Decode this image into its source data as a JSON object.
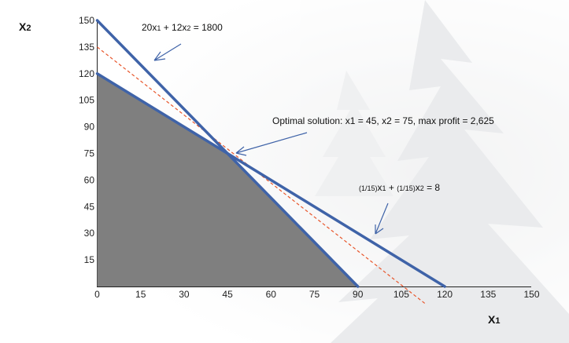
{
  "chart_data": {
    "type": "line",
    "xlabel_main": "X",
    "xlabel_sub": "1",
    "ylabel_main": "X",
    "ylabel_sub": "2",
    "xlim": [
      0,
      150
    ],
    "ylim": [
      0,
      150
    ],
    "x_ticks": [
      "0",
      "15",
      "30",
      "45",
      "60",
      "75",
      "90",
      "105",
      "120",
      "135",
      "150"
    ],
    "y_ticks": [
      "15",
      "30",
      "45",
      "60",
      "75",
      "90",
      "105",
      "120",
      "135",
      "150"
    ],
    "grid": false,
    "constraints": [
      {
        "name": "20x1 + 12x2 = 1800",
        "points": [
          [
            0,
            150
          ],
          [
            90,
            0
          ]
        ],
        "color": "#3f63a8"
      },
      {
        "name": "(1/15)x1 + (1/15)x2 = 8",
        "points": [
          [
            0,
            120
          ],
          [
            120,
            0
          ]
        ],
        "color": "#3f63a8"
      }
    ],
    "objective_line": {
      "points": [
        [
          0,
          135
        ],
        [
          113.5,
          -10
        ]
      ],
      "color": "#e8552a",
      "style": "dashed"
    },
    "feasible_region": [
      [
        0,
        0
      ],
      [
        0,
        120
      ],
      [
        45,
        75
      ],
      [
        90,
        0
      ]
    ],
    "optimal_point": {
      "x": 45,
      "y": 75
    },
    "annotations": {
      "c1": {
        "parts": [
          [
            "20x",
            "n"
          ],
          [
            "1",
            "s"
          ],
          [
            " + 12x",
            "n"
          ],
          [
            "2",
            "s"
          ],
          [
            " = 1800",
            "n"
          ]
        ]
      },
      "optimal": {
        "parts": [
          [
            "Optimal solution: x1 = 45, x2 = 75, max profit = 2,625",
            "n"
          ]
        ]
      },
      "c2": {
        "parts": [
          [
            "(1/15)",
            "s"
          ],
          [
            "x",
            "n"
          ],
          [
            "1",
            "s"
          ],
          [
            " + ",
            "n"
          ],
          [
            "(1/15)",
            "s"
          ],
          [
            "x",
            "n"
          ],
          [
            "2",
            "s"
          ],
          [
            " = 8",
            "n"
          ]
        ]
      }
    }
  }
}
